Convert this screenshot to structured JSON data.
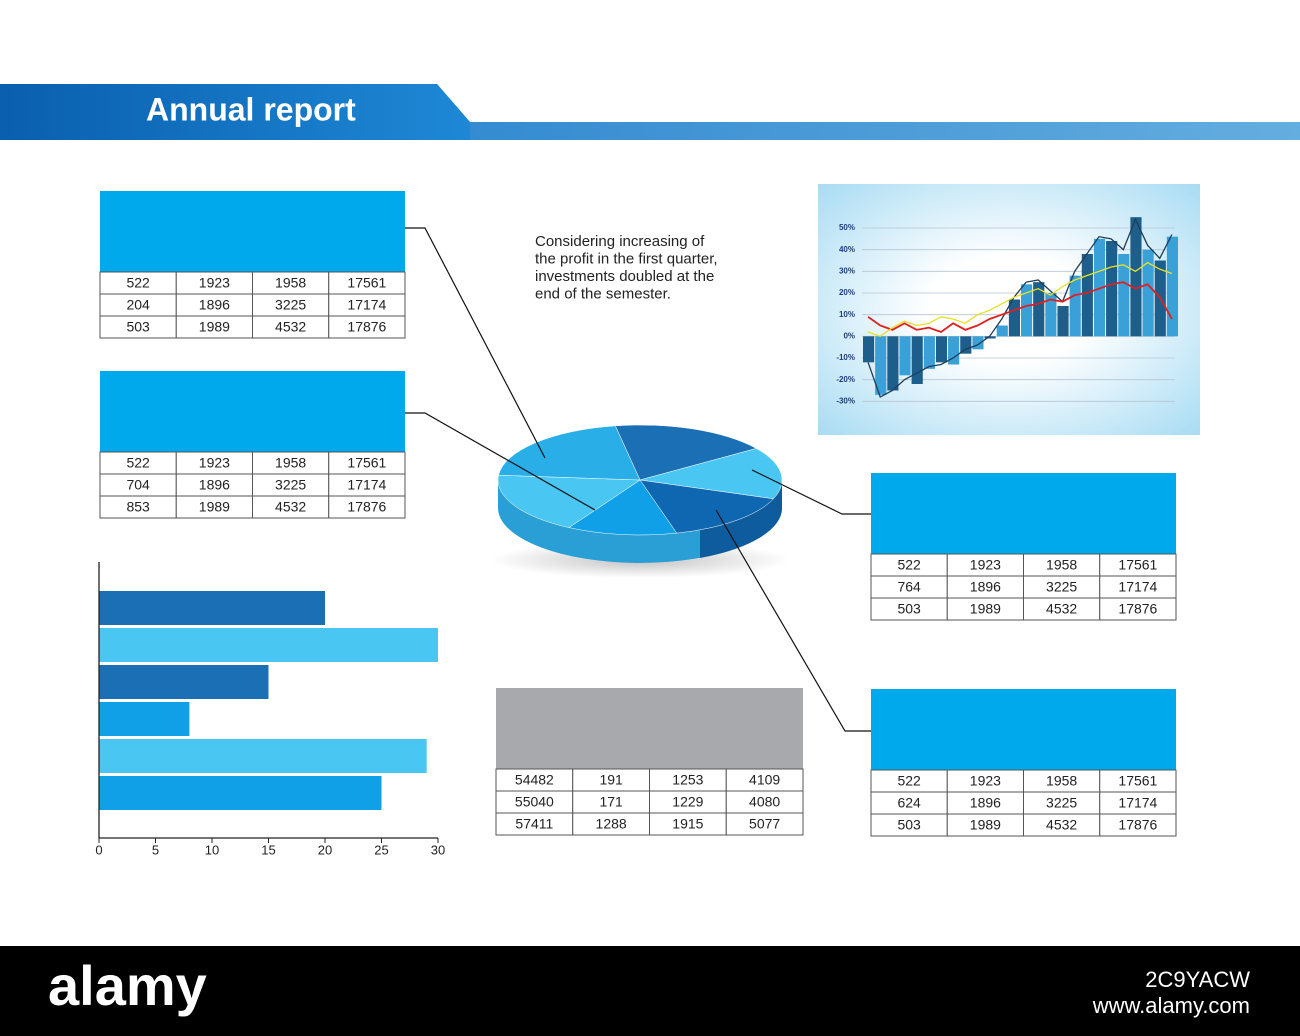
{
  "header": {
    "title": "Annual report"
  },
  "note": [
    "Considering increasing of",
    "the profit in the first quarter,",
    "investments doubled at the",
    "end of the semester."
  ],
  "tables": [
    {
      "color": "#00a9ec",
      "rows": [
        [
          522,
          1923,
          1958,
          17561
        ],
        [
          204,
          1896,
          3225,
          17174
        ],
        [
          503,
          1989,
          4532,
          17876
        ]
      ]
    },
    {
      "color": "#00a9ec",
      "rows": [
        [
          522,
          1923,
          1958,
          17561
        ],
        [
          704,
          1896,
          3225,
          17174
        ],
        [
          853,
          1989,
          4532,
          17876
        ]
      ]
    },
    {
      "color": "#00a9ec",
      "rows": [
        [
          522,
          1923,
          1958,
          17561
        ],
        [
          764,
          1896,
          3225,
          17174
        ],
        [
          503,
          1989,
          4532,
          17876
        ]
      ]
    },
    {
      "color": "#00a9ec",
      "rows": [
        [
          522,
          1923,
          1958,
          17561
        ],
        [
          624,
          1896,
          3225,
          17174
        ],
        [
          503,
          1989,
          4532,
          17876
        ]
      ]
    },
    {
      "color": "#a7a9ac",
      "rows": [
        [
          54482,
          191,
          1253,
          4109
        ],
        [
          55040,
          171,
          1229,
          4080
        ],
        [
          57411,
          1288,
          1915,
          5077
        ]
      ]
    }
  ],
  "chart_data": [
    {
      "type": "hbar",
      "values": [
        20,
        30,
        15,
        8,
        29,
        25
      ],
      "colors": [
        "#1a6fb5",
        "#4ac6f2",
        "#1a6fb5",
        "#10a0e8",
        "#4ac6f2",
        "#10a0e8"
      ],
      "xlim": [
        0,
        30
      ],
      "xticks": [
        0,
        5,
        10,
        15,
        20,
        25,
        30
      ]
    },
    {
      "type": "combo",
      "ylim": [
        -34,
        56
      ],
      "yticks": [
        {
          "value": 50,
          "label": "50%"
        },
        {
          "value": 40,
          "label": "40%"
        },
        {
          "value": 30,
          "label": "30%"
        },
        {
          "value": 20,
          "label": "20%"
        },
        {
          "value": 10,
          "label": "10%"
        },
        {
          "value": 0,
          "label": "0%"
        },
        {
          "value": -10,
          "label": "-10%"
        },
        {
          "value": -20,
          "label": "-20%"
        },
        {
          "value": -30,
          "label": "-30%"
        }
      ],
      "grid": true,
      "series": [
        {
          "kind": "bar",
          "colors": [
            "#1d5f8a",
            "#3aa0d8"
          ],
          "values": [
            -12,
            -27,
            -25,
            -18,
            -22,
            -15,
            -12,
            -13,
            -8,
            -6,
            -1,
            5,
            17,
            24,
            25,
            20,
            14,
            28,
            38,
            45,
            44,
            38,
            55,
            40,
            35,
            46
          ]
        },
        {
          "kind": "line",
          "color": "#1d3d5a",
          "values": [
            -12,
            -28,
            -25,
            -20,
            -17,
            -14,
            -13,
            -10,
            -6,
            -4,
            0,
            8,
            18,
            25,
            26,
            21,
            16,
            30,
            38,
            46,
            45,
            40,
            54,
            42,
            36,
            47
          ]
        },
        {
          "kind": "line",
          "color": "#e02020",
          "values": [
            9,
            5,
            3,
            6,
            3,
            4,
            2,
            6,
            3,
            5,
            8,
            10,
            12,
            14,
            15,
            17,
            16,
            19,
            20,
            22,
            24,
            25,
            22,
            24,
            18,
            8
          ]
        },
        {
          "kind": "line",
          "color": "#e8e020",
          "values": [
            2,
            0,
            4,
            7,
            5,
            6,
            9,
            8,
            6,
            10,
            12,
            15,
            18,
            20,
            22,
            19,
            23,
            26,
            28,
            30,
            32,
            33,
            30,
            34,
            31,
            29
          ]
        }
      ]
    }
  ],
  "footer": {
    "brand": "alamy",
    "code": "2C9YACW",
    "url": "www.alamy.com"
  }
}
